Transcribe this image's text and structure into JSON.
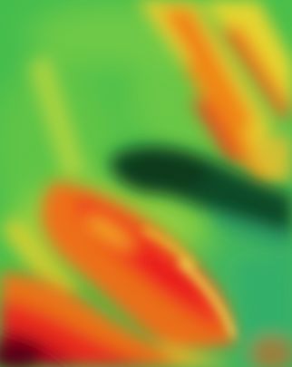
{
  "image": {
    "kind": "heatmap-visualization",
    "has_text": false
  },
  "palette": {
    "deep_red": "#c8001e",
    "red": "#ef2b1a",
    "orange": "#f06a12",
    "yellow": "#f4d62a",
    "yellow_green": "#b8d83a",
    "green": "#4cbf4a",
    "mid_green": "#38a94a",
    "teal": "#2fb27a",
    "dark_green": "#0b3d21",
    "maroon": "#5a0012"
  }
}
